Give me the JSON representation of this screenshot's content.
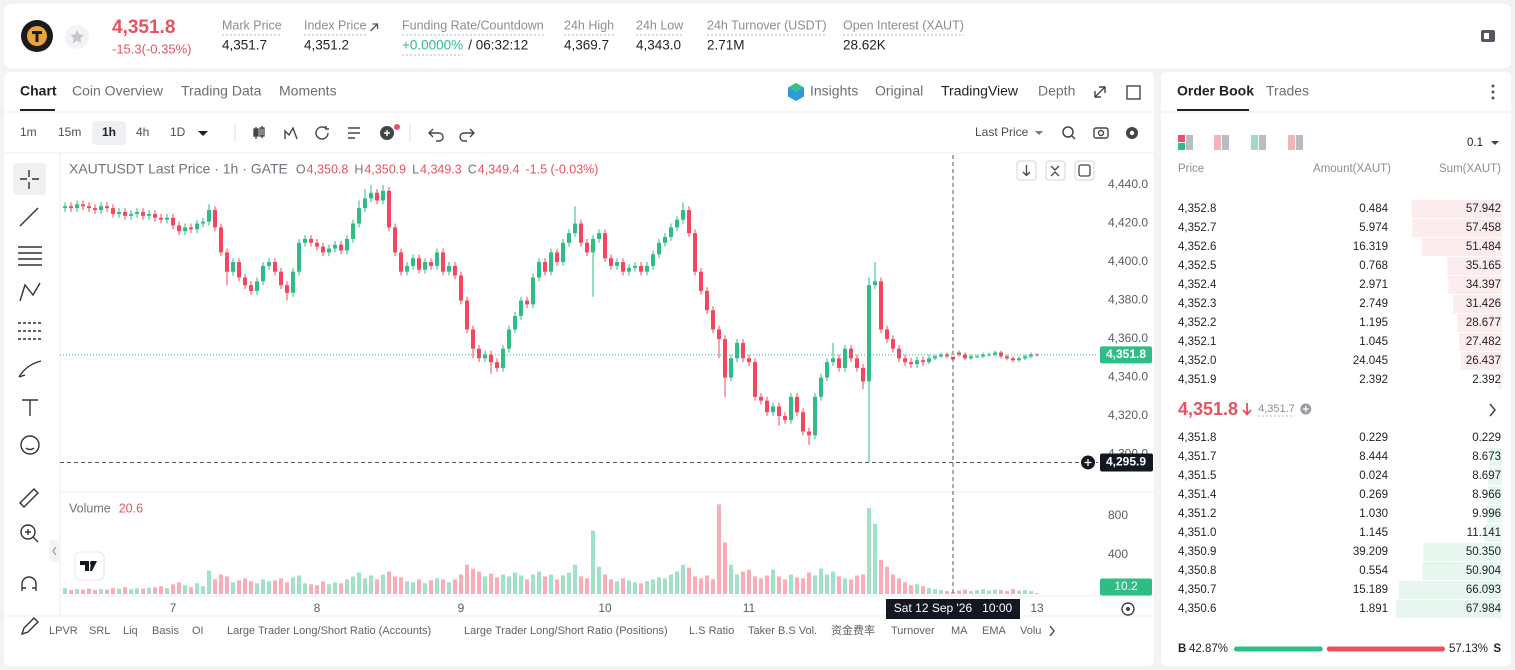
{
  "header": {
    "price": "4,351.8",
    "change": "-15.3(-0.35%)",
    "stats": [
      {
        "label": "Mark Price",
        "value": "4,351.7"
      },
      {
        "label": "Index Price",
        "value": "4,351.2"
      },
      {
        "label": "Funding Rate/Countdown",
        "value": "+0.0000%",
        "extra": "/ 06:32:12"
      },
      {
        "label": "24h High",
        "value": "4,369.7"
      },
      {
        "label": "24h Low",
        "value": "4,343.0"
      },
      {
        "label": "24h Turnover (USDT)",
        "value": "2.71M"
      },
      {
        "label": "Open Interest (XAUT)",
        "value": "28.62K"
      }
    ]
  },
  "chart_tabs": [
    "Chart",
    "Coin Overview",
    "Trading Data",
    "Moments"
  ],
  "view_tabs": [
    "Insights",
    "Original",
    "TradingView",
    "Depth"
  ],
  "intervals": [
    "1m",
    "15m",
    "1h",
    "4h",
    "1D"
  ],
  "price_source": "Last Price",
  "indicator_tabs": [
    "LPVR",
    "SRL",
    "Liq",
    "Basis",
    "OI",
    "Large Trader Long/Short Ratio (Accounts)",
    "Large Trader Long/Short Ratio (Positions)",
    "L.S Ratio",
    "Taker B.S Vol.",
    "资金费率",
    "Turnover",
    "MA",
    "EMA",
    "Volu"
  ],
  "chart_data": {
    "type": "candlestick",
    "title": "XAUTUSDT Last Price · 1h · GATE",
    "legend": [
      {
        "key": "O",
        "value": "4,350.8"
      },
      {
        "key": "H",
        "value": "4,350.9"
      },
      {
        "key": "L",
        "value": "4,349.3"
      },
      {
        "key": "C",
        "value": "4,349.4"
      }
    ],
    "legend_change": "-1.5 (-0.03%)",
    "colors": {
      "up": "#2ebd85",
      "down": "#f6465d"
    },
    "candles": [
      [
        4428,
        4431,
        4426,
        4429
      ],
      [
        4429,
        4431,
        4426,
        4428
      ],
      [
        4428,
        4432,
        4426,
        4430
      ],
      [
        4430,
        4432,
        4427,
        4429
      ],
      [
        4429,
        4431,
        4426,
        4428
      ],
      [
        4428,
        4430,
        4425,
        4427
      ],
      [
        4427,
        4431,
        4425,
        4429
      ],
      [
        4429,
        4431,
        4426,
        4428
      ],
      [
        4428,
        4430,
        4423,
        4425
      ],
      [
        4425,
        4428,
        4423,
        4426
      ],
      [
        4426,
        4428,
        4422,
        4424
      ],
      [
        4424,
        4427,
        4422,
        4425
      ],
      [
        4425,
        4428,
        4423,
        4426
      ],
      [
        4426,
        4428,
        4422,
        4424
      ],
      [
        4424,
        4427,
        4422,
        4425
      ],
      [
        4425,
        4427,
        4421,
        4423
      ],
      [
        4423,
        4425,
        4420,
        4422
      ],
      [
        4422,
        4425,
        4420,
        4423
      ],
      [
        4423,
        4425,
        4417,
        4419
      ],
      [
        4419,
        4421,
        4414,
        4416
      ],
      [
        4416,
        4420,
        4414,
        4418
      ],
      [
        4418,
        4420,
        4415,
        4417
      ],
      [
        4417,
        4422,
        4415,
        4420
      ],
      [
        4420,
        4423,
        4418,
        4421
      ],
      [
        4421,
        4430,
        4419,
        4427
      ],
      [
        4427,
        4429,
        4416,
        4418
      ],
      [
        4418,
        4420,
        4403,
        4405
      ],
      [
        4405,
        4407,
        4388,
        4395
      ],
      [
        4395,
        4402,
        4393,
        4400
      ],
      [
        4400,
        4402,
        4390,
        4392
      ],
      [
        4392,
        4394,
        4386,
        4388
      ],
      [
        4388,
        4390,
        4383,
        4385
      ],
      [
        4385,
        4392,
        4383,
        4390
      ],
      [
        4390,
        4400,
        4388,
        4398
      ],
      [
        4398,
        4402,
        4396,
        4400
      ],
      [
        4400,
        4402,
        4393,
        4395
      ],
      [
        4395,
        4397,
        4386,
        4388
      ],
      [
        4388,
        4390,
        4380,
        4384
      ],
      [
        4384,
        4397,
        4382,
        4395
      ],
      [
        4395,
        4412,
        4393,
        4410
      ],
      [
        4410,
        4414,
        4408,
        4412
      ],
      [
        4412,
        4414,
        4408,
        4410
      ],
      [
        4410,
        4412,
        4406,
        4408
      ],
      [
        4408,
        4410,
        4403,
        4405
      ],
      [
        4405,
        4409,
        4403,
        4407
      ],
      [
        4407,
        4411,
        4405,
        4409
      ],
      [
        4409,
        4411,
        4404,
        4406
      ],
      [
        4406,
        4414,
        4404,
        4412
      ],
      [
        4412,
        4422,
        4410,
        4420
      ],
      [
        4420,
        4432,
        4418,
        4428
      ],
      [
        4428,
        4438,
        4426,
        4433
      ],
      [
        4433,
        4440,
        4431,
        4436
      ],
      [
        4436,
        4438,
        4430,
        4432
      ],
      [
        4432,
        4440,
        4430,
        4437
      ],
      [
        4437,
        4439,
        4416,
        4418
      ],
      [
        4418,
        4420,
        4403,
        4405
      ],
      [
        4405,
        4407,
        4393,
        4395
      ],
      [
        4395,
        4400,
        4393,
        4398
      ],
      [
        4398,
        4404,
        4396,
        4402
      ],
      [
        4402,
        4404,
        4394,
        4396
      ],
      [
        4396,
        4402,
        4394,
        4400
      ],
      [
        4400,
        4402,
        4396,
        4398
      ],
      [
        4398,
        4407,
        4396,
        4405
      ],
      [
        4405,
        4407,
        4393,
        4395
      ],
      [
        4395,
        4400,
        4393,
        4398
      ],
      [
        4398,
        4400,
        4391,
        4393
      ],
      [
        4393,
        4395,
        4378,
        4380
      ],
      [
        4380,
        4382,
        4363,
        4365
      ],
      [
        4365,
        4367,
        4350,
        4355
      ],
      [
        4355,
        4357,
        4348,
        4350
      ],
      [
        4350,
        4354,
        4348,
        4352
      ],
      [
        4352,
        4354,
        4342,
        4348
      ],
      [
        4348,
        4350,
        4343,
        4345
      ],
      [
        4345,
        4357,
        4343,
        4355
      ],
      [
        4355,
        4367,
        4353,
        4365
      ],
      [
        4365,
        4374,
        4363,
        4372
      ],
      [
        4372,
        4382,
        4370,
        4380
      ],
      [
        4380,
        4382,
        4376,
        4378
      ],
      [
        4378,
        4394,
        4376,
        4392
      ],
      [
        4392,
        4402,
        4390,
        4400
      ],
      [
        4400,
        4402,
        4393,
        4395
      ],
      [
        4395,
        4407,
        4393,
        4405
      ],
      [
        4405,
        4407,
        4398,
        4400
      ],
      [
        4400,
        4412,
        4398,
        4410
      ],
      [
        4410,
        4417,
        4408,
        4415
      ],
      [
        4415,
        4429,
        4413,
        4420
      ],
      [
        4420,
        4422,
        4408,
        4410
      ],
      [
        4410,
        4412,
        4403,
        4405
      ],
      [
        4405,
        4414,
        4382,
        4412
      ],
      [
        4412,
        4417,
        4410,
        4415
      ],
      [
        4415,
        4417,
        4400,
        4402
      ],
      [
        4402,
        4404,
        4396,
        4398
      ],
      [
        4398,
        4402,
        4396,
        4400
      ],
      [
        4400,
        4402,
        4393,
        4395
      ],
      [
        4395,
        4399,
        4393,
        4397
      ],
      [
        4397,
        4400,
        4395,
        4398
      ],
      [
        4398,
        4400,
        4393,
        4395
      ],
      [
        4395,
        4400,
        4393,
        4398
      ],
      [
        4398,
        4406,
        4396,
        4404
      ],
      [
        4404,
        4412,
        4402,
        4410
      ],
      [
        4410,
        4415,
        4408,
        4413
      ],
      [
        4413,
        4420,
        4411,
        4418
      ],
      [
        4418,
        4424,
        4416,
        4422
      ],
      [
        4422,
        4431,
        4420,
        4427
      ],
      [
        4427,
        4429,
        4413,
        4415
      ],
      [
        4415,
        4417,
        4393,
        4395
      ],
      [
        4395,
        4397,
        4383,
        4385
      ],
      [
        4385,
        4387,
        4373,
        4375
      ],
      [
        4375,
        4377,
        4363,
        4365
      ],
      [
        4365,
        4367,
        4350,
        4360
      ],
      [
        4360,
        4362,
        4330,
        4340
      ],
      [
        4340,
        4352,
        4338,
        4350
      ],
      [
        4350,
        4360,
        4348,
        4358
      ],
      [
        4358,
        4360,
        4348,
        4350
      ],
      [
        4350,
        4352,
        4346,
        4348
      ],
      [
        4348,
        4350,
        4328,
        4330
      ],
      [
        4330,
        4332,
        4326,
        4328
      ],
      [
        4328,
        4330,
        4320,
        4322
      ],
      [
        4322,
        4327,
        4320,
        4325
      ],
      [
        4325,
        4327,
        4315,
        4320
      ],
      [
        4320,
        4322,
        4316,
        4318
      ],
      [
        4318,
        4332,
        4316,
        4330
      ],
      [
        4330,
        4332,
        4320,
        4322
      ],
      [
        4322,
        4324,
        4310,
        4312
      ],
      [
        4312,
        4314,
        4305,
        4310
      ],
      [
        4310,
        4332,
        4308,
        4330
      ],
      [
        4330,
        4342,
        4328,
        4340
      ],
      [
        4340,
        4350,
        4338,
        4348
      ],
      [
        4348,
        4358,
        4346,
        4350
      ],
      [
        4350,
        4352,
        4343,
        4345
      ],
      [
        4345,
        4357,
        4343,
        4355
      ],
      [
        4355,
        4357,
        4348,
        4350
      ],
      [
        4350,
        4352,
        4343,
        4345
      ],
      [
        4345,
        4347,
        4334,
        4338
      ],
      [
        4338,
        4392,
        4296,
        4388
      ],
      [
        4388,
        4400,
        4386,
        4390
      ],
      [
        4390,
        4392,
        4363,
        4365
      ],
      [
        4365,
        4367,
        4358,
        4360
      ],
      [
        4360,
        4362,
        4353,
        4355
      ],
      [
        4355,
        4357,
        4348,
        4350
      ],
      [
        4350,
        4352,
        4346,
        4348
      ],
      [
        4348,
        4350,
        4345,
        4347
      ],
      [
        4347,
        4351,
        4345,
        4349
      ],
      [
        4349,
        4351,
        4346,
        4348
      ],
      [
        4348,
        4352,
        4347,
        4350
      ],
      [
        4350,
        4352,
        4349,
        4351
      ],
      [
        4351,
        4353,
        4350,
        4352
      ],
      [
        4352,
        4353,
        4350,
        4351
      ],
      [
        4350.8,
        4350.9,
        4349.3,
        4349.4
      ],
      [
        4353,
        4354,
        4351,
        4352
      ],
      [
        4352,
        4353,
        4349,
        4350
      ],
      [
        4350,
        4352,
        4349,
        4351
      ],
      [
        4351,
        4352,
        4350,
        4351
      ],
      [
        4351,
        4353,
        4350,
        4352
      ],
      [
        4352,
        4353,
        4351,
        4352
      ],
      [
        4352,
        4354,
        4351,
        4353
      ],
      [
        4353,
        4354,
        4350,
        4351
      ],
      [
        4351,
        4352,
        4349,
        4350
      ],
      [
        4350,
        4351,
        4348,
        4349
      ],
      [
        4349,
        4351,
        4348,
        4350
      ],
      [
        4350,
        4352,
        4349,
        4351
      ],
      [
        4351,
        4353,
        4350,
        4352
      ],
      [
        4352,
        4352.5,
        4351,
        4351.8
      ]
    ],
    "ylim": [
      4281.6,
      4455.6
    ],
    "yticks": [
      {
        "value": 4300,
        "label": "4,300.0"
      },
      {
        "value": 4320,
        "label": "4,320.0"
      },
      {
        "value": 4340,
        "label": "4,340.0"
      },
      {
        "value": 4360,
        "label": "4,360.0"
      },
      {
        "value": 4380,
        "label": "4,380.0"
      },
      {
        "value": 4400,
        "label": "4,400.0"
      },
      {
        "value": 4420,
        "label": "4,420.0"
      },
      {
        "value": 4440,
        "label": "4,440.0"
      }
    ],
    "xticks": [
      {
        "value": 18,
        "label": "7"
      },
      {
        "value": 42,
        "label": "8"
      },
      {
        "value": 66,
        "label": "9"
      },
      {
        "value": 90,
        "label": "10"
      },
      {
        "value": 114,
        "label": "11"
      },
      {
        "value": 162,
        "label": "13"
      }
    ],
    "last_price": {
      "value": 4351.8,
      "label": "4,351.8"
    },
    "crosshair": {
      "value": 4295.9,
      "label": "4,295.9"
    },
    "crosshair_time": "Sat 12 Sep '26   10:00",
    "volume": {
      "title": "Volume",
      "legend_value": 20.6,
      "values": [
        60,
        40,
        50,
        45,
        55,
        40,
        50,
        45,
        60,
        55,
        70,
        50,
        60,
        55,
        65,
        70,
        80,
        60,
        100,
        120,
        90,
        70,
        110,
        80,
        240,
        150,
        200,
        180,
        120,
        140,
        160,
        130,
        110,
        150,
        130,
        140,
        160,
        120,
        170,
        190,
        110,
        100,
        90,
        130,
        100,
        120,
        110,
        150,
        180,
        220,
        160,
        190,
        150,
        200,
        230,
        180,
        170,
        130,
        120,
        150,
        110,
        140,
        160,
        150,
        120,
        150,
        200,
        300,
        260,
        230,
        180,
        210,
        170,
        200,
        180,
        220,
        190,
        150,
        200,
        230,
        180,
        200,
        150,
        190,
        220,
        300,
        180,
        160,
        650,
        280,
        200,
        150,
        130,
        160,
        140,
        120,
        110,
        130,
        150,
        170,
        160,
        200,
        230,
        300,
        270,
        180,
        160,
        190,
        150,
        920,
        530,
        300,
        200,
        230,
        250,
        180,
        160,
        190,
        250,
        180,
        150,
        200,
        170,
        160,
        220,
        190,
        260,
        200,
        230,
        180,
        160,
        150,
        190,
        200,
        880,
        720,
        350,
        280,
        200,
        160,
        120,
        90,
        100,
        80,
        60,
        50,
        40,
        30,
        20.6,
        35,
        45,
        30,
        40,
        50,
        35,
        45,
        40,
        30,
        50,
        35,
        40,
        30,
        10.2
      ],
      "ylim": [
        0,
        1015
      ],
      "yticks": [
        400,
        800
      ],
      "last": 10.2
    }
  },
  "order_book": {
    "tabs": [
      "Order Book",
      "Trades"
    ],
    "precision": "0.1",
    "columns": [
      "Price",
      "Amount(XAUT)",
      "Sum(XAUT)"
    ],
    "asks": [
      [
        "4,352.8",
        "0.484",
        "57.942"
      ],
      [
        "4,352.7",
        "5.974",
        "57.458"
      ],
      [
        "4,352.6",
        "16.319",
        "51.484"
      ],
      [
        "4,352.5",
        "0.768",
        "35.165"
      ],
      [
        "4,352.4",
        "2.971",
        "34.397"
      ],
      [
        "4,352.3",
        "2.749",
        "31.426"
      ],
      [
        "4,352.2",
        "1.195",
        "28.677"
      ],
      [
        "4,352.1",
        "1.045",
        "27.482"
      ],
      [
        "4,352.0",
        "24.045",
        "26.437"
      ],
      [
        "4,351.9",
        "2.392",
        "2.392"
      ]
    ],
    "last_price": "4,351.8",
    "mark_price": "4,351.7",
    "bids": [
      [
        "4,351.8",
        "0.229",
        "0.229"
      ],
      [
        "4,351.7",
        "8.444",
        "8.673"
      ],
      [
        "4,351.5",
        "0.024",
        "8.697"
      ],
      [
        "4,351.4",
        "0.269",
        "8.966"
      ],
      [
        "4,351.2",
        "1.030",
        "9.996"
      ],
      [
        "4,351.0",
        "1.145",
        "11.141"
      ],
      [
        "4,350.9",
        "39.209",
        "50.350"
      ],
      [
        "4,350.8",
        "0.554",
        "50.904"
      ],
      [
        "4,350.7",
        "15.189",
        "66.093"
      ],
      [
        "4,350.6",
        "1.891",
        "67.984"
      ]
    ],
    "buy_label": "B",
    "buy_ratio": "42.87%",
    "sell_ratio": "57.13%",
    "sell_label": "S"
  }
}
